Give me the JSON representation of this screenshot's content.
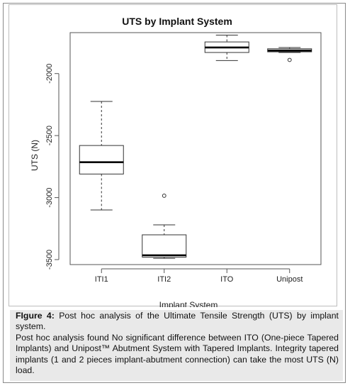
{
  "chart_data": {
    "type": "boxplot",
    "title": "UTS by Implant System",
    "xlabel": "Implant System",
    "ylabel": "UTS (N)",
    "ylim": [
      -3540,
      -1670
    ],
    "yticks": [
      -2000,
      -2500,
      -3000,
      -3500
    ],
    "categories": [
      "ITI1",
      "ITI2",
      "ITO",
      "Unipost"
    ],
    "boxes": [
      {
        "category": "ITI1",
        "whisker_low": -3100,
        "q1": -2810,
        "median": -2715,
        "q3": -2580,
        "whisker_high": -2225,
        "outliers": []
      },
      {
        "category": "ITI2",
        "whisker_low": -3490,
        "q1": -3480,
        "median": -3465,
        "q3": -3300,
        "whisker_high": -3220,
        "outliers": [
          -2985
        ]
      },
      {
        "category": "ITO",
        "whisker_low": -1895,
        "q1": -1830,
        "median": -1790,
        "q3": -1745,
        "whisker_high": -1690,
        "outliers": []
      },
      {
        "category": "Unipost",
        "whisker_low": -1830,
        "q1": -1825,
        "median": -1815,
        "q3": -1800,
        "whisker_high": -1790,
        "outliers": [
          -1890
        ]
      }
    ]
  },
  "caption": {
    "figure_label": "FIgure 4:",
    "figure_title": "Post hoc analysis of the Ultimate Tensile Strength (UTS) by implant system.",
    "body": "Post hoc analysis found No significant difference between ITO (One-piece Tapered Implants) and Unipost™ Abutment System with Tapered Implants. Integrity tapered implants (1 and 2 pieces implant-abutment connection) can take the most UTS (N) load."
  }
}
